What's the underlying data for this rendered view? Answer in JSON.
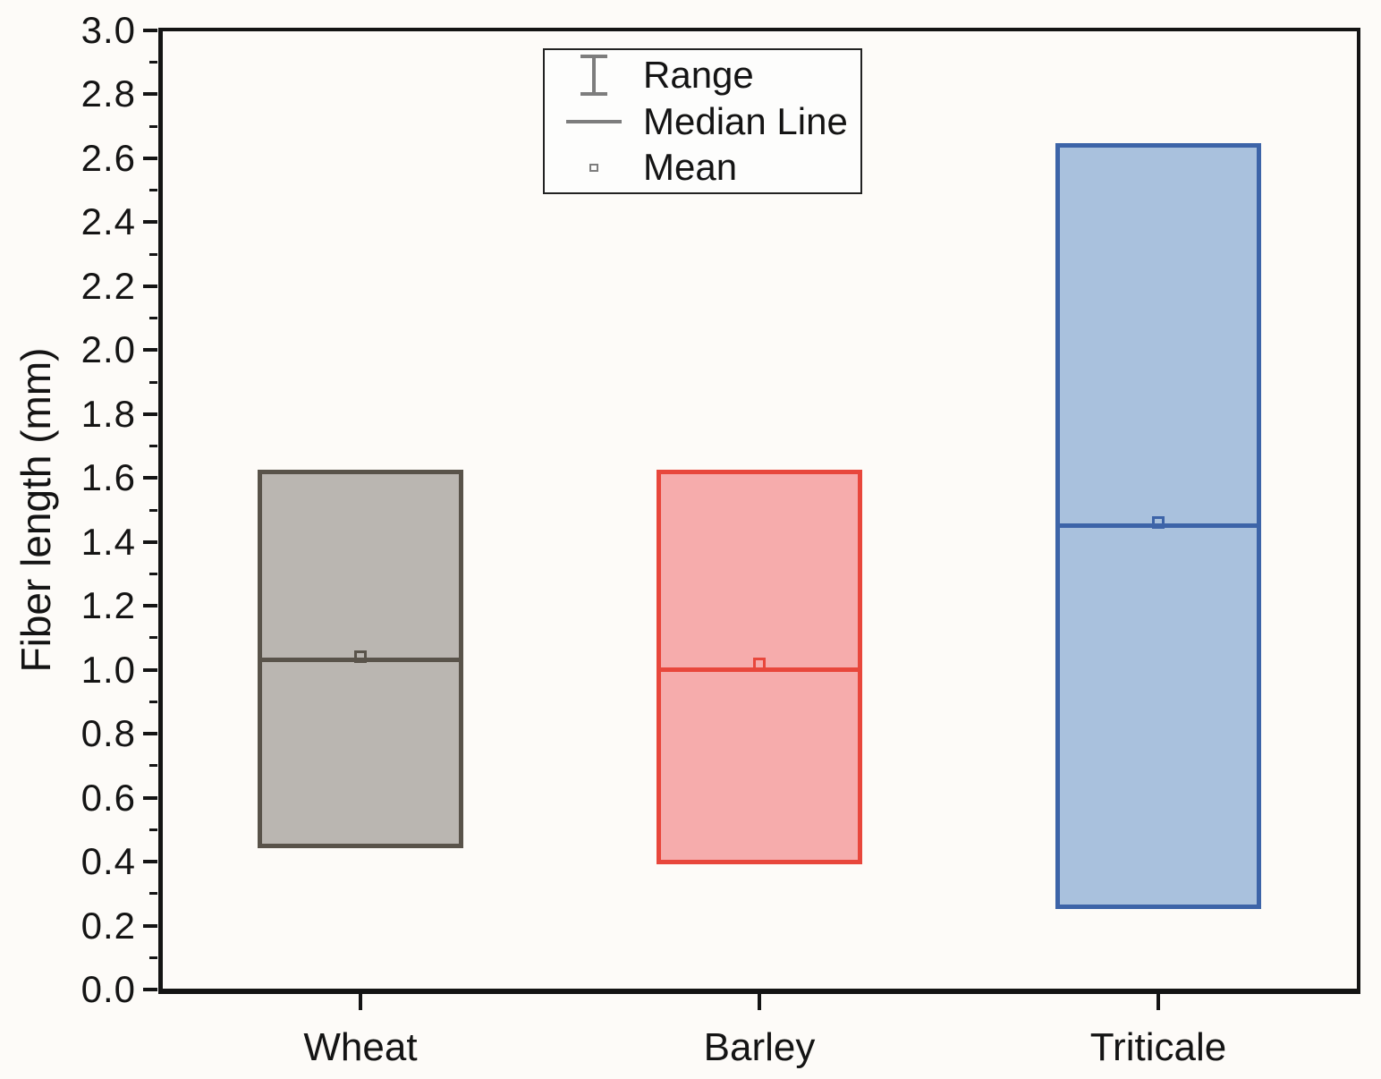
{
  "chart_data": {
    "type": "box",
    "title": "",
    "xlabel": "",
    "ylabel": "Fiber length (mm)",
    "ylim": [
      0.0,
      3.0
    ],
    "y_major_step": 0.2,
    "y_minor_step": 0.1,
    "y_tick_labels": [
      "0.0",
      "0.2",
      "0.4",
      "0.6",
      "0.8",
      "1.0",
      "1.2",
      "1.4",
      "1.6",
      "1.8",
      "2.0",
      "2.2",
      "2.4",
      "2.6",
      "2.8",
      "3.0"
    ],
    "categories": [
      "Wheat",
      "Barley",
      "Triticale"
    ],
    "series": [
      {
        "name": "Wheat",
        "min": 0.45,
        "max": 1.62,
        "median": 1.03,
        "mean": 1.04,
        "fill": "#bab6b1",
        "stroke": "#59534a"
      },
      {
        "name": "Barley",
        "min": 0.4,
        "max": 1.62,
        "median": 1.0,
        "mean": 1.02,
        "fill": "#f6acac",
        "stroke": "#e8473c"
      },
      {
        "name": "Triticale",
        "min": 0.26,
        "max": 2.64,
        "median": 1.45,
        "mean": 1.46,
        "fill": "#a9c1dd",
        "stroke": "#3d64a8"
      }
    ],
    "legend": {
      "position": "top-center",
      "entries": [
        {
          "symbol": "range-errorbar",
          "label": "Range"
        },
        {
          "symbol": "median-line",
          "label": "Median Line"
        },
        {
          "symbol": "mean-square",
          "label": "Mean"
        }
      ]
    },
    "grid": false,
    "axis_color": "#141414",
    "legend_symbol_color": "#7d7d7d",
    "background_color": "#fdfbf8"
  }
}
